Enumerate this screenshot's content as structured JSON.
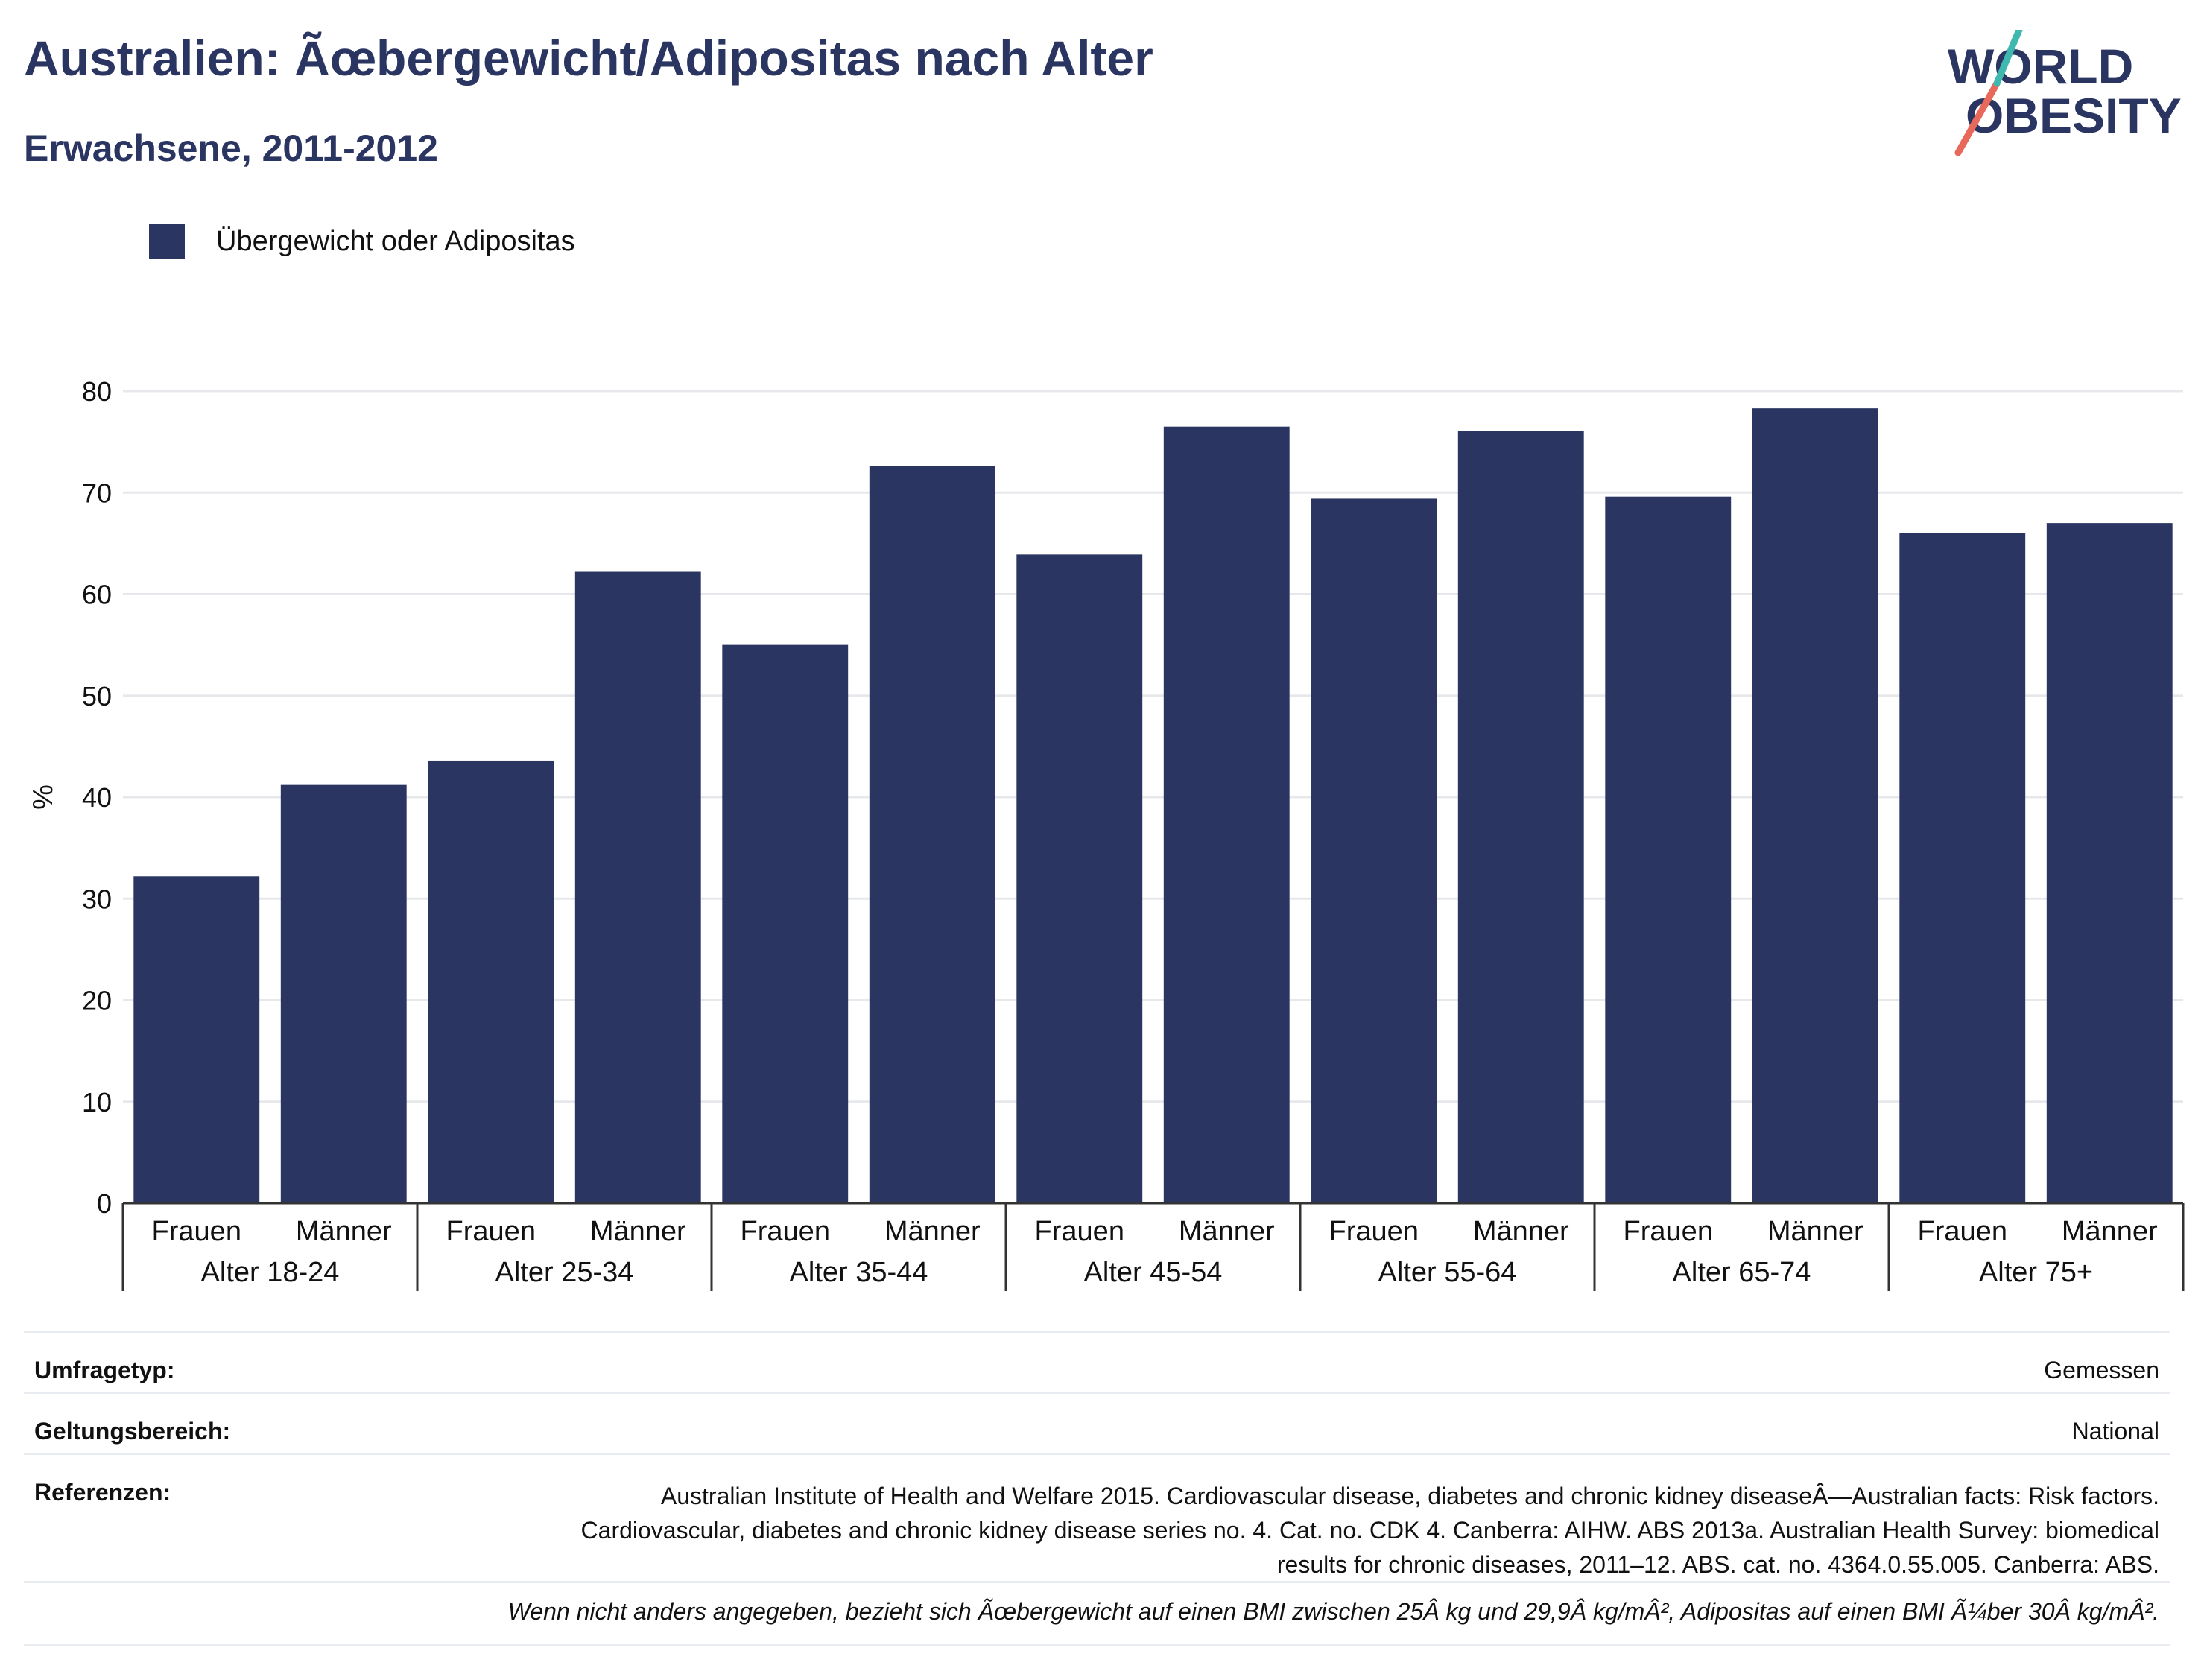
{
  "header": {
    "title": "Australien: Ãœbergewicht/Adipositas nach Alter",
    "subtitle": "Erwachsene, 2011-2012"
  },
  "logo": {
    "line1": "WORLD",
    "line2": "OBESITY",
    "colors": [
      "#2a3562",
      "#e8685a",
      "#3fb8b0"
    ]
  },
  "legend": {
    "label": "Übergewicht oder Adipositas",
    "color": "#2a3562"
  },
  "chart_data": {
    "type": "bar",
    "ylabel": "%",
    "ylim": [
      0,
      80
    ],
    "yticks": [
      0,
      10,
      20,
      30,
      40,
      50,
      60,
      70,
      80
    ],
    "grid": true,
    "bar_color": "#2a3562",
    "groups": [
      {
        "label": "Alter 18-24",
        "categories": [
          "Frauen",
          "Männer"
        ],
        "values": [
          32.2,
          41.2
        ]
      },
      {
        "label": "Alter 25-34",
        "categories": [
          "Frauen",
          "Männer"
        ],
        "values": [
          43.6,
          62.2
        ]
      },
      {
        "label": "Alter 35-44",
        "categories": [
          "Frauen",
          "Männer"
        ],
        "values": [
          55.0,
          72.6
        ]
      },
      {
        "label": "Alter 45-54",
        "categories": [
          "Frauen",
          "Männer"
        ],
        "values": [
          63.9,
          76.5
        ]
      },
      {
        "label": "Alter 55-64",
        "categories": [
          "Frauen",
          "Männer"
        ],
        "values": [
          69.4,
          76.1
        ]
      },
      {
        "label": "Alter 65-74",
        "categories": [
          "Frauen",
          "Männer"
        ],
        "values": [
          69.6,
          78.3
        ]
      },
      {
        "label": "Alter 75+",
        "categories": [
          "Frauen",
          "Männer"
        ],
        "values": [
          66.0,
          67.0
        ]
      }
    ],
    "legend": [
      "Übergewicht oder Adipositas"
    ]
  },
  "meta": {
    "survey_type_label": "Umfragetyp:",
    "survey_type_value": "Gemessen",
    "scope_label": "Geltungsbereich:",
    "scope_value": "National",
    "refs_label": "Referenzen:",
    "refs_value": "Australian Institute of Health and Welfare 2015. Cardiovascular disease, diabetes and chronic kidney diseaseÂ—Australian facts: Risk factors. Cardiovascular, diabetes and chronic kidney disease series no. 4. Cat. no. CDK 4. Canberra: AIHW. ABS 2013a. Australian Health Survey: biomedical results for chronic diseases, 2011–12. ABS. cat. no. 4364.0.55.005. Canberra: ABS."
  },
  "footnote": "Wenn nicht anders angegeben, bezieht sich Ãœbergewicht auf einen BMI zwischen 25Â kg und 29,9Â kg/mÂ², Adipositas auf einen BMI Ã¼ber 30Â kg/mÂ²."
}
